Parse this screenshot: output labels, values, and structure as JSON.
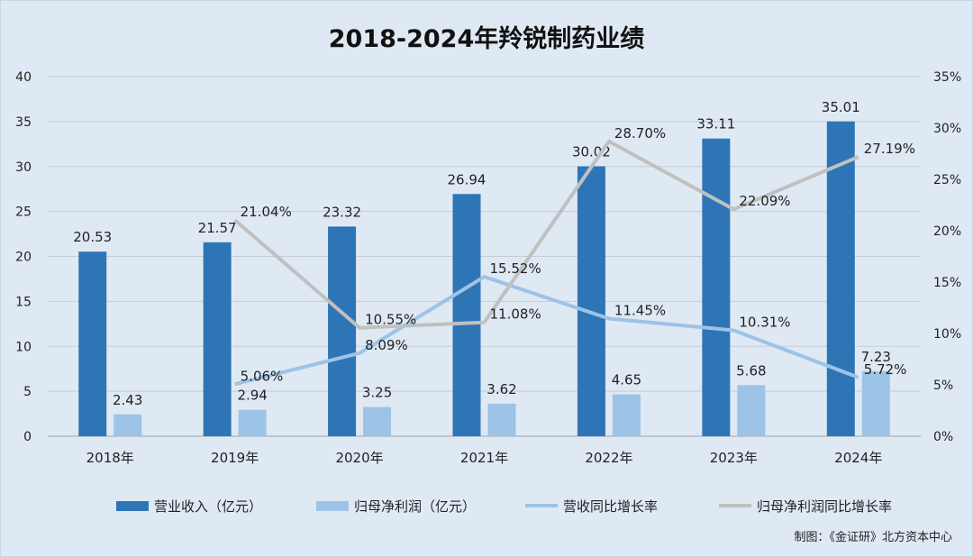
{
  "title": "2018-2024年羚锐制药业绩",
  "source": "制图：《金证研》北方资本中心",
  "colors": {
    "revenue_bar": "#2e75b6",
    "profit_bar": "#9dc3e6",
    "revenue_growth_line": "#9dc3e6",
    "profit_growth_line": "#c0c0c0",
    "background": "#dfe9f4",
    "grid": "#c4ccd6"
  },
  "chart_data": {
    "type": "bar",
    "categories": [
      "2018年",
      "2019年",
      "2020年",
      "2021年",
      "2022年",
      "2023年",
      "2024年"
    ],
    "series": [
      {
        "name": "营业收入（亿元）",
        "type": "bar",
        "axis": "left",
        "values": [
          20.53,
          21.57,
          23.32,
          26.94,
          30.02,
          33.11,
          35.01
        ],
        "labels": [
          "20.53",
          "21.57",
          "23.32",
          "26.94",
          "30.02",
          "33.11",
          "35.01"
        ]
      },
      {
        "name": "归母净利润（亿元）",
        "type": "bar",
        "axis": "left",
        "values": [
          2.43,
          2.94,
          3.25,
          3.62,
          4.65,
          5.68,
          7.23
        ],
        "labels": [
          "2.43",
          "2.94",
          "3.25",
          "3.62",
          "4.65",
          "5.68",
          "7.23"
        ]
      },
      {
        "name": "营收同比增长率",
        "type": "line",
        "axis": "right",
        "values": [
          null,
          5.06,
          8.09,
          15.52,
          11.45,
          10.31,
          5.72
        ],
        "labels": [
          "",
          "5.06%",
          "8.09%",
          "15.52%",
          "11.45%",
          "10.31%",
          "5.72%"
        ]
      },
      {
        "name": "归母净利润同比增长率",
        "type": "line",
        "axis": "right",
        "values": [
          null,
          21.04,
          10.55,
          11.08,
          28.7,
          22.09,
          27.19
        ],
        "labels": [
          "",
          "21.04%",
          "10.55%",
          "11.08%",
          "28.70%",
          "22.09%",
          "27.19%"
        ]
      }
    ],
    "left_axis": {
      "min": 0,
      "max": 40,
      "ticks": [
        "0",
        "5",
        "10",
        "15",
        "20",
        "25",
        "30",
        "35",
        "40"
      ]
    },
    "right_axis": {
      "min": 0,
      "max": 35,
      "ticks": [
        "0%",
        "5%",
        "10%",
        "15%",
        "20%",
        "25%",
        "30%",
        "35%"
      ]
    },
    "grid": true,
    "legend_position": "bottom"
  }
}
